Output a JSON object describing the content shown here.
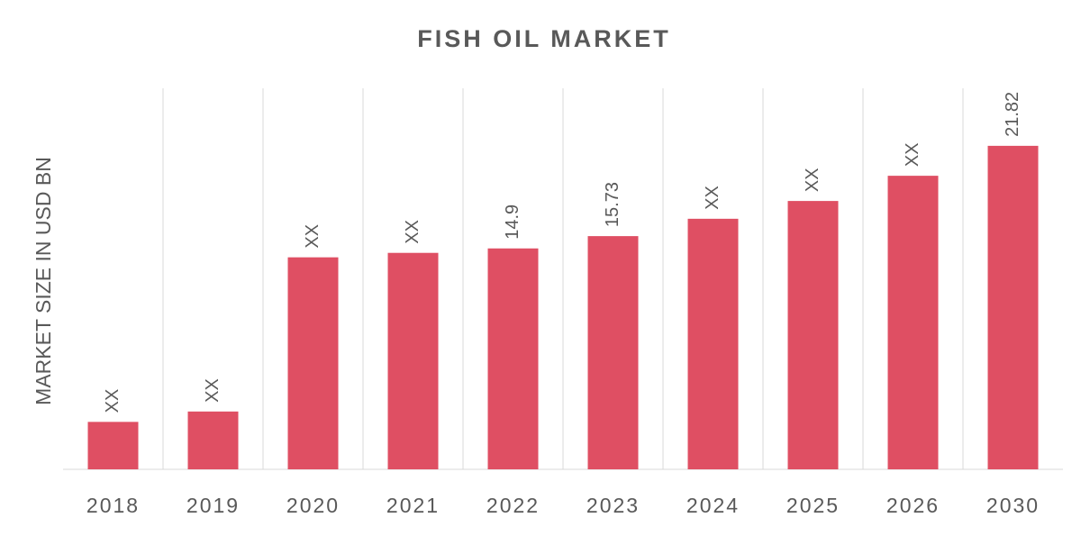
{
  "chart_data": {
    "type": "bar",
    "title": "FISH OIL MARKET",
    "y_label": "MARKET SIZE IN USD BN",
    "categories": [
      "2018",
      "2019",
      "2020",
      "2021",
      "2022",
      "2023",
      "2024",
      "2025",
      "2026",
      "2030"
    ],
    "values": [
      3.2,
      3.9,
      14.3,
      14.6,
      14.9,
      15.73,
      16.9,
      18.1,
      19.8,
      21.82
    ],
    "value_labels": [
      "XX",
      "XX",
      "XX",
      "XX",
      "14.9",
      "15.73",
      "XX",
      "XX",
      "XX",
      "21.82"
    ],
    "color": "#df4f63",
    "ylim": [
      0,
      24
    ]
  }
}
